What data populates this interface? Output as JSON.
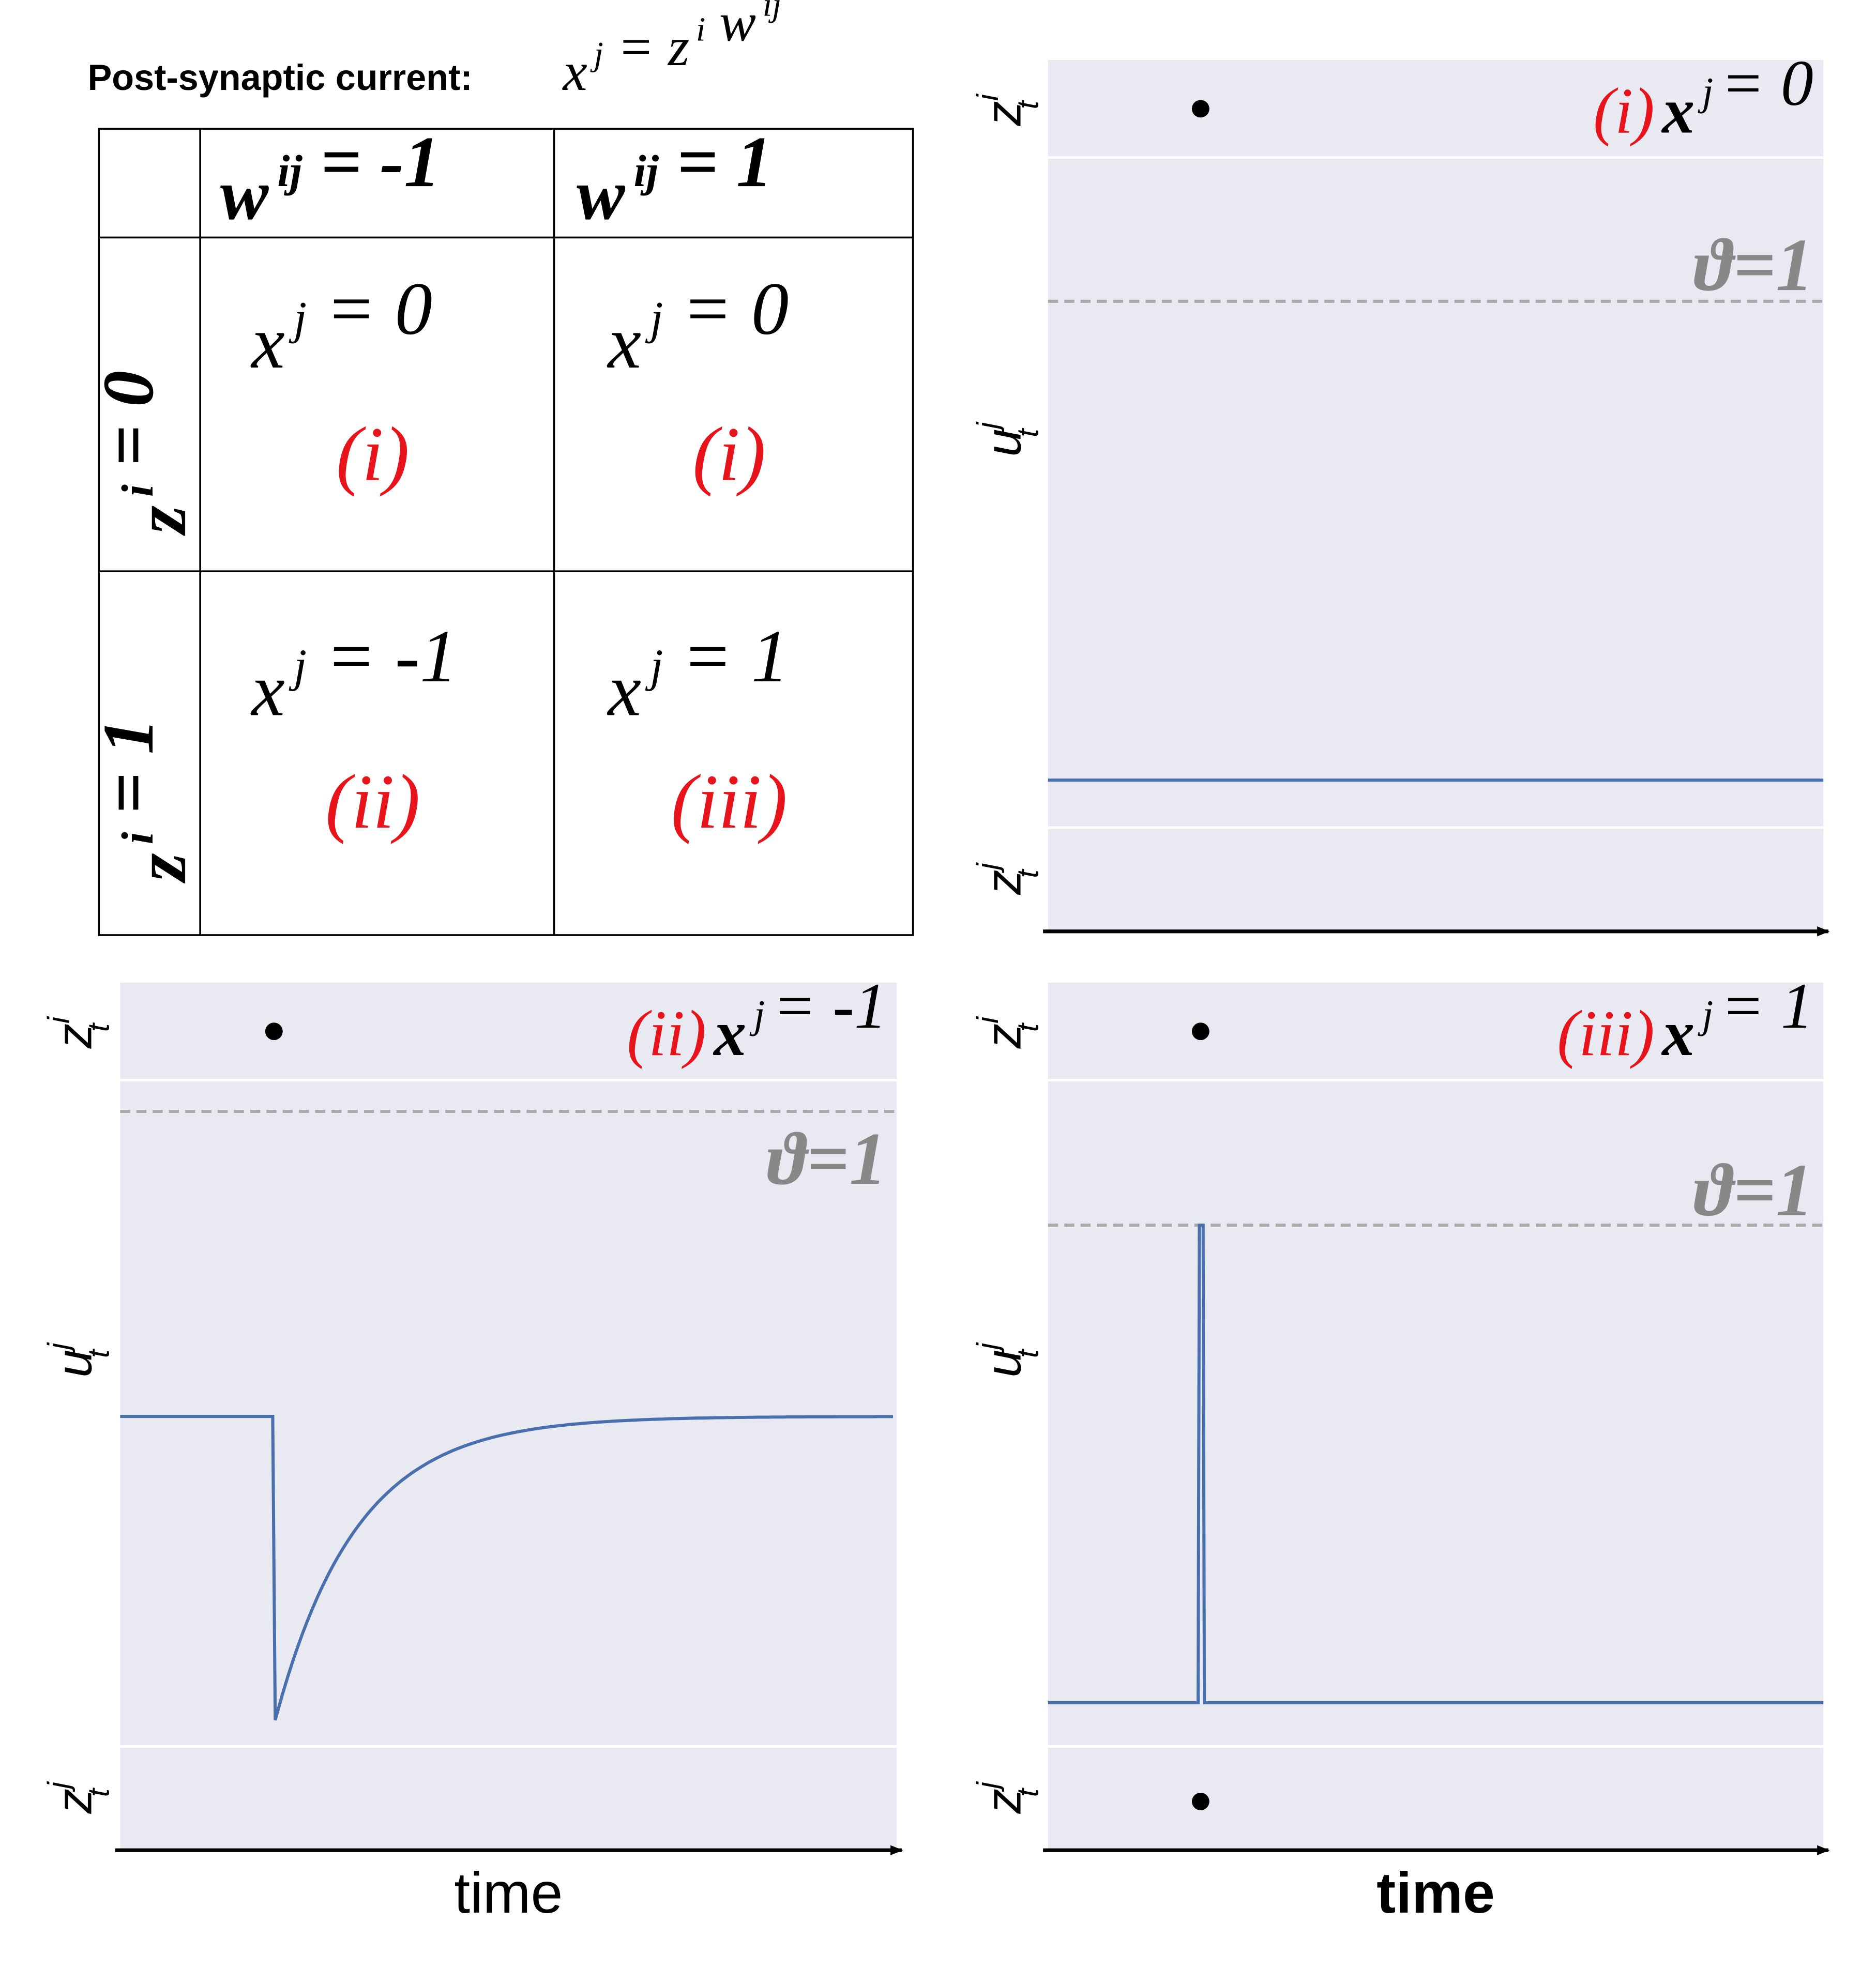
{
  "title": {
    "label": "Post-synaptic current:",
    "formula": [
      {
        "t": "x",
        "sup": "j"
      },
      {
        "t": "= z",
        "sup": "i"
      },
      {
        "t": "w",
        "sup": "ij"
      }
    ]
  },
  "table": {
    "col_headers": [
      [
        {
          "t": "w",
          "sup": "ij"
        },
        {
          "t": "= -1"
        }
      ],
      [
        {
          "t": "w",
          "sup": "ij"
        },
        {
          "t": "= 1"
        }
      ]
    ],
    "row_headers": [
      [
        {
          "t": "z",
          "sup": "i"
        },
        {
          "t": "= 0"
        }
      ],
      [
        {
          "t": "z",
          "sup": "i"
        },
        {
          "t": "= 1"
        }
      ]
    ],
    "rows": [
      [
        {
          "formula": [
            {
              "t": "x",
              "sup": "j"
            },
            {
              "t": "= 0"
            }
          ],
          "case": "(i)"
        },
        {
          "formula": [
            {
              "t": "x",
              "sup": "j"
            },
            {
              "t": "= 0"
            }
          ],
          "case": "(i)"
        }
      ],
      [
        {
          "formula": [
            {
              "t": "x",
              "sup": "j"
            },
            {
              "t": "= -1"
            }
          ],
          "case": "(ii)"
        },
        {
          "formula": [
            {
              "t": "x",
              "sup": "j"
            },
            {
              "t": "= 1"
            }
          ],
          "case": "(iii)"
        }
      ]
    ]
  },
  "panels": [
    {
      "case": "(i)",
      "formula": [
        {
          "t": "x",
          "sup": "j"
        },
        {
          "t": "= 0"
        }
      ],
      "threshold": "ϑ=1",
      "top_label": {
        "t": "z",
        "sub": "t",
        "sup": "i"
      },
      "mid_label": {
        "t": "u",
        "sub": "t",
        "sup": "j"
      },
      "bottom_label": {
        "t": "z",
        "sub": "t",
        "sup": "j"
      }
    },
    {
      "case": "(ii)",
      "formula": [
        {
          "t": "x",
          "sup": "j"
        },
        {
          "t": "= -1"
        }
      ],
      "threshold": "ϑ=1",
      "top_label": {
        "t": "z",
        "sub": "t",
        "sup": "i"
      },
      "mid_label": {
        "t": "u",
        "sub": "t",
        "sup": "j"
      },
      "bottom_label": {
        "t": "z",
        "sub": "t",
        "sup": "j"
      },
      "x_label": "time"
    },
    {
      "case": "(iii)",
      "formula": [
        {
          "t": "x",
          "sup": "j"
        },
        {
          "t": "= 1"
        }
      ],
      "threshold": "ϑ=1",
      "top_label": {
        "t": "z",
        "sub": "t",
        "sup": "i"
      },
      "mid_label": {
        "t": "u",
        "sub": "t",
        "sup": "j"
      },
      "bottom_label": {
        "t": "z",
        "sub": "t",
        "sup": "j"
      },
      "x_label": "time"
    }
  ]
}
